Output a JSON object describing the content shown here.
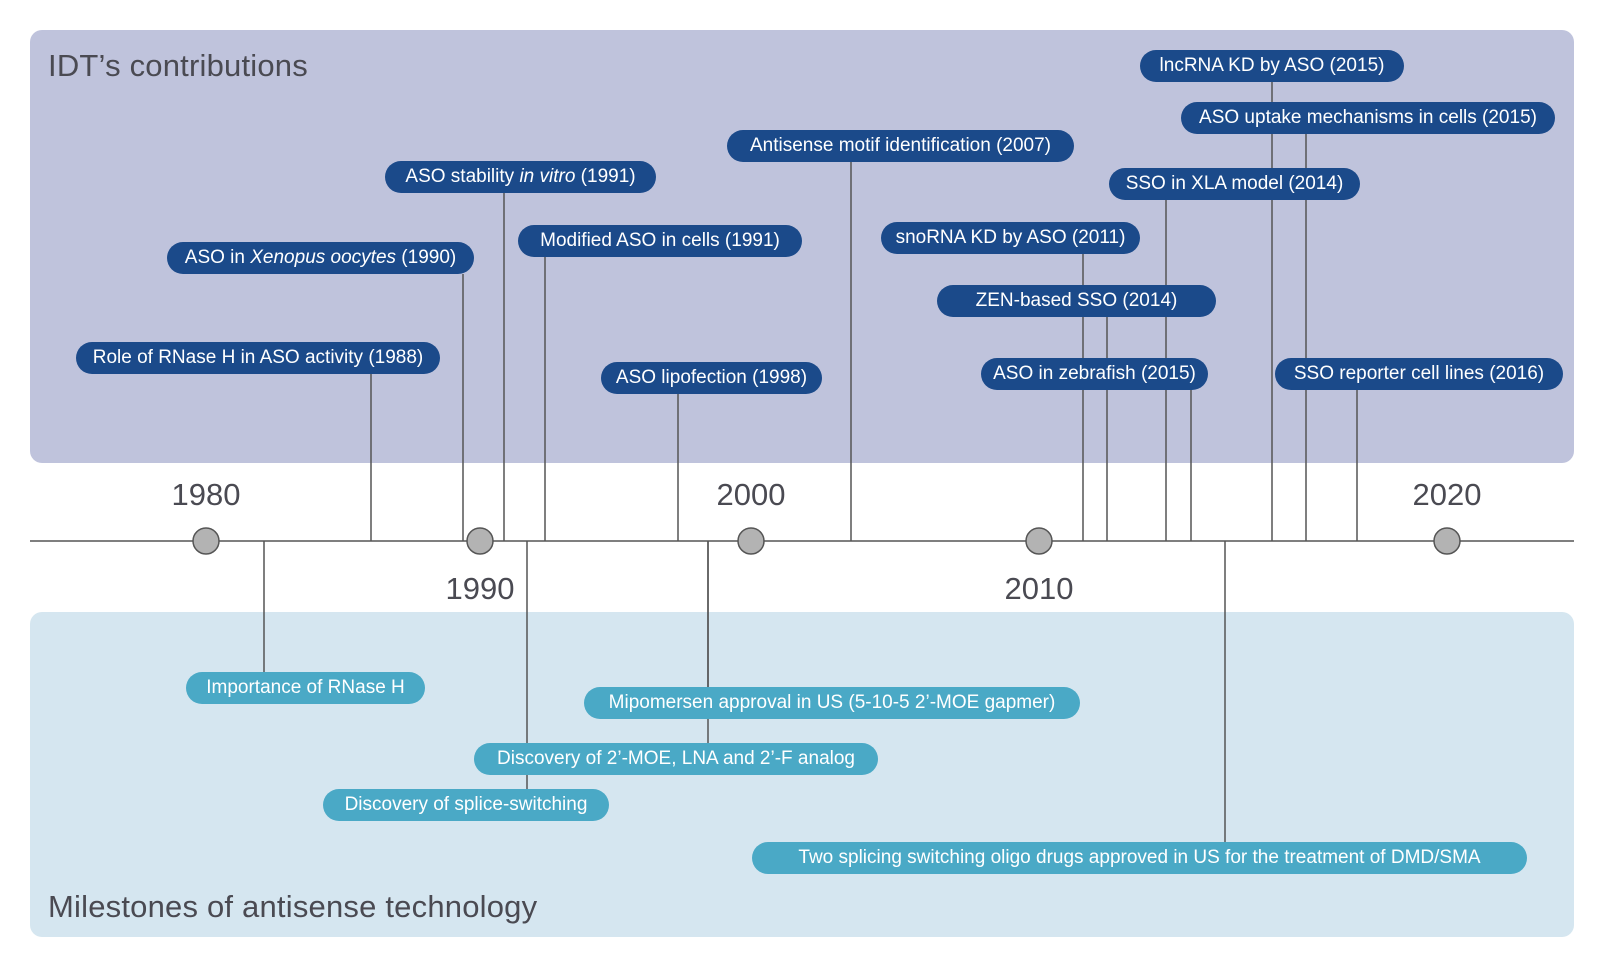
{
  "panels": {
    "top_title": "IDT’s contributions",
    "bottom_title": "Milestones of antisense technology"
  },
  "year_ticks": [
    {
      "label": "1980",
      "year": 1980,
      "position": "above"
    },
    {
      "label": "1990",
      "year": 1990,
      "position": "below"
    },
    {
      "label": "2000",
      "year": 2000,
      "position": "above"
    },
    {
      "label": "2010",
      "year": 2010,
      "position": "below"
    },
    {
      "label": "2020",
      "year": 2020,
      "position": "above"
    }
  ],
  "idt_events": [
    {
      "id": "lncrna",
      "pre": "lncRNA KD by ASO (2015)",
      "it": "",
      "post": ""
    },
    {
      "id": "uptake",
      "pre": "ASO uptake mechanisms in cells (2015)",
      "it": "",
      "post": ""
    },
    {
      "id": "motif",
      "pre": "Antisense motif identification (2007)",
      "it": "",
      "post": ""
    },
    {
      "id": "stability",
      "pre": "ASO stability ",
      "it": "in vitro",
      "post": " (1991)"
    },
    {
      "id": "xla",
      "pre": "SSO in XLA model (2014)",
      "it": "",
      "post": ""
    },
    {
      "id": "modified",
      "pre": "Modified ASO in cells (1991)",
      "it": "",
      "post": ""
    },
    {
      "id": "snorna",
      "pre": "snoRNA KD by ASO (2011)",
      "it": "",
      "post": ""
    },
    {
      "id": "xenopus",
      "pre": "ASO in ",
      "it": "Xenopus oocytes",
      "post": " (1990)"
    },
    {
      "id": "zen",
      "pre": "ZEN-based SSO (2014)",
      "it": "",
      "post": ""
    },
    {
      "id": "rnaseh",
      "pre": "Role of RNase H in ASO activity (1988)",
      "it": "",
      "post": ""
    },
    {
      "id": "lipofection",
      "pre": "ASO lipofection (1998)",
      "it": "",
      "post": ""
    },
    {
      "id": "zebrafish",
      "pre": "ASO in zebrafish (2015)",
      "it": "",
      "post": ""
    },
    {
      "id": "reporter",
      "pre": "SSO reporter cell lines (2016)",
      "it": "",
      "post": ""
    }
  ],
  "milestones": [
    {
      "id": "importance",
      "label": "Importance of RNase H"
    },
    {
      "id": "mipomersen",
      "label": "Mipomersen approval in US (5-10-5 2’-MOE gapmer)"
    },
    {
      "id": "moe",
      "label": "Discovery of 2’-MOE, LNA and 2’-F analog"
    },
    {
      "id": "splice",
      "label": "Discovery of splice-switching"
    },
    {
      "id": "drugs",
      "label": "Two splicing switching oligo drugs approved in US for the treatment of DMD/SMA"
    }
  ],
  "colors": {
    "top_panel": "#bfc3dc",
    "bottom_panel": "#d5e6f0",
    "idt_pill": "#1b4a8a",
    "milestone_pill": "#4aa9c6",
    "axis": "#555555",
    "tick_fill": "#b3b3b3"
  }
}
